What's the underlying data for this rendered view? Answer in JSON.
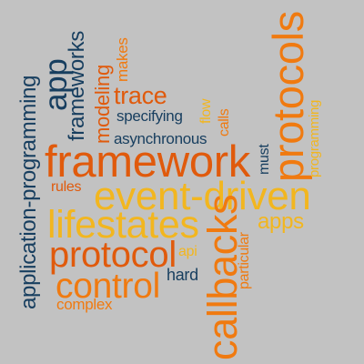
{
  "colors": {
    "background": "#c2c2c2",
    "navy": "#1f4e79",
    "orange": "#f07a10",
    "red": "#e05a0c",
    "yellow": "#f2b61f"
  },
  "words": {
    "framework": "framework",
    "event_driven": "event-driven",
    "lifestates": "lifestates",
    "protocols": "protocols",
    "callbacks": "callbacks",
    "application_programming": "application-programming",
    "protocol": "protocol",
    "control": "control",
    "app": "app",
    "frameworks": "frameworks",
    "modeling": "modeling",
    "trace": "trace",
    "apps": "apps",
    "asynchronous": "asynchronous",
    "specifying": "specifying",
    "makes": "makes",
    "flow": "flow",
    "calls": "calls",
    "must": "must",
    "programming": "programming",
    "rules": "rules",
    "api": "api",
    "particular": "particular",
    "hard": "hard",
    "complex": "complex"
  }
}
